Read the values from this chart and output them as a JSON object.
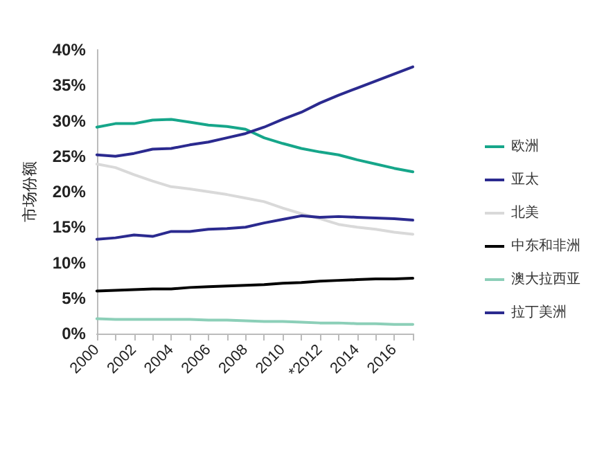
{
  "chart_data": {
    "type": "line",
    "ylabel": "市场份额",
    "categories": [
      "2000",
      null,
      "2002",
      null,
      "2004",
      null,
      "2006",
      null,
      "2008",
      null,
      "2010",
      null,
      "*2012",
      null,
      "2014",
      null,
      "2016",
      null
    ],
    "series": [
      {
        "name": "欧洲",
        "color": "#16a68a",
        "values": [
          29.1,
          29.6,
          29.6,
          30.1,
          30.2,
          29.8,
          29.4,
          29.2,
          28.8,
          27.6,
          26.8,
          26.1,
          25.6,
          25.2,
          24.5,
          23.9,
          23.3,
          22.8
        ]
      },
      {
        "name": "亚太",
        "color": "#2b2a8f",
        "values": [
          25.2,
          25.0,
          25.4,
          26.0,
          26.1,
          26.6,
          27.0,
          27.6,
          28.2,
          29.1,
          30.2,
          31.2,
          32.5,
          33.6,
          34.6,
          35.6,
          36.6,
          37.6
        ]
      },
      {
        "name": "北美",
        "color": "#d9d9d9",
        "values": [
          23.9,
          23.4,
          22.4,
          21.5,
          20.7,
          20.4,
          20.0,
          19.6,
          19.1,
          18.6,
          17.7,
          16.9,
          16.2,
          15.4,
          15.0,
          14.7,
          14.3,
          14.0
        ]
      },
      {
        "name": "中东和非洲",
        "color": "#000000",
        "values": [
          6.0,
          6.1,
          6.2,
          6.3,
          6.3,
          6.5,
          6.6,
          6.7,
          6.8,
          6.9,
          7.1,
          7.2,
          7.4,
          7.5,
          7.6,
          7.7,
          7.7,
          7.8
        ]
      },
      {
        "name": "澳大拉西亚",
        "color": "#8ccfb8",
        "values": [
          2.1,
          2.0,
          2.0,
          2.0,
          2.0,
          2.0,
          1.9,
          1.9,
          1.8,
          1.7,
          1.7,
          1.6,
          1.5,
          1.5,
          1.4,
          1.4,
          1.3,
          1.3
        ]
      },
      {
        "name": "拉丁美洲",
        "color": "#2b2a8f",
        "values": [
          13.3,
          13.5,
          13.9,
          13.7,
          14.4,
          14.4,
          14.7,
          14.8,
          15.0,
          15.6,
          16.1,
          16.6,
          16.4,
          16.5,
          16.4,
          16.3,
          16.2,
          16.0
        ]
      }
    ],
    "ylim": [
      0,
      40
    ],
    "yticks": [
      {
        "value": 0,
        "label": "0%"
      },
      {
        "value": 5,
        "label": "5%"
      },
      {
        "value": 10,
        "label": "10%"
      },
      {
        "value": 15,
        "label": "15%"
      },
      {
        "value": 20,
        "label": "20%"
      },
      {
        "value": 25,
        "label": "25%"
      },
      {
        "value": 30,
        "label": "30%"
      },
      {
        "value": 35,
        "label": "35%"
      },
      {
        "value": 40,
        "label": "40%"
      }
    ],
    "grid": false,
    "legend": "right",
    "marker": "none",
    "line_style": "solid"
  }
}
